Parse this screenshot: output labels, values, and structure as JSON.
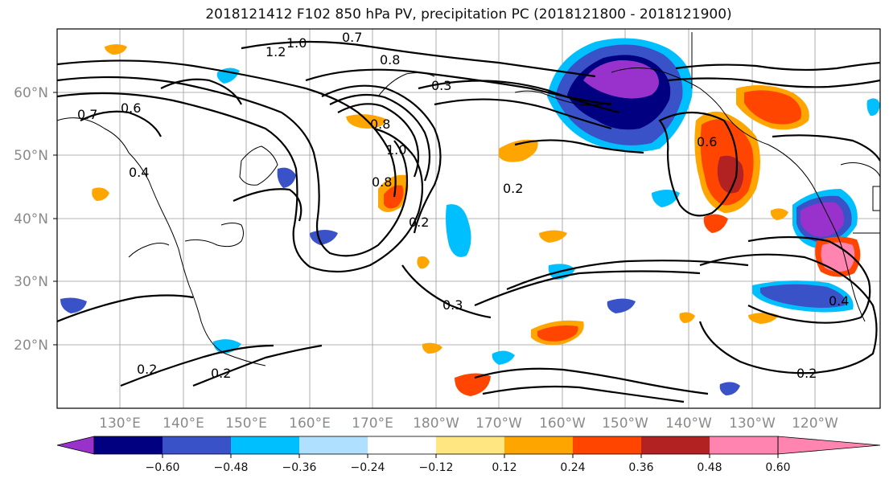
{
  "title": "2018121412 F102 850 hPa PV, precipitation PC (2018121800 - 2018121900)",
  "lat_labels": [
    "60°N",
    "50°N",
    "40°N",
    "30°N",
    "20°N"
  ],
  "lon_labels": [
    "130°E",
    "140°E",
    "150°E",
    "160°E",
    "170°E",
    "180°W",
    "170°W",
    "160°W",
    "150°W",
    "140°W",
    "130°W",
    "120°W"
  ],
  "colorbar": {
    "ticks": [
      "−0.60",
      "−0.48",
      "−0.36",
      "−0.24",
      "−0.12",
      "0.12",
      "0.24",
      "0.36",
      "0.48",
      "0.60"
    ],
    "colors": [
      "#9932cc",
      "#000080",
      "#3a52c8",
      "#00bfff",
      "#b0e0ff",
      "#ffffff",
      "#ffe680",
      "#ffa500",
      "#ff4500",
      "#b22222",
      "#ff85b0"
    ]
  },
  "contour_labels": [
    "1.0",
    "1.2",
    "0.7",
    "0.8",
    "0.3",
    "0.7",
    "0.6",
    "0.8",
    "1.0",
    "0.8",
    "0.2",
    "0.2",
    "0.3",
    "0.2",
    "0.2",
    "0.6",
    "0.4",
    "0.2",
    "0.4"
  ]
}
